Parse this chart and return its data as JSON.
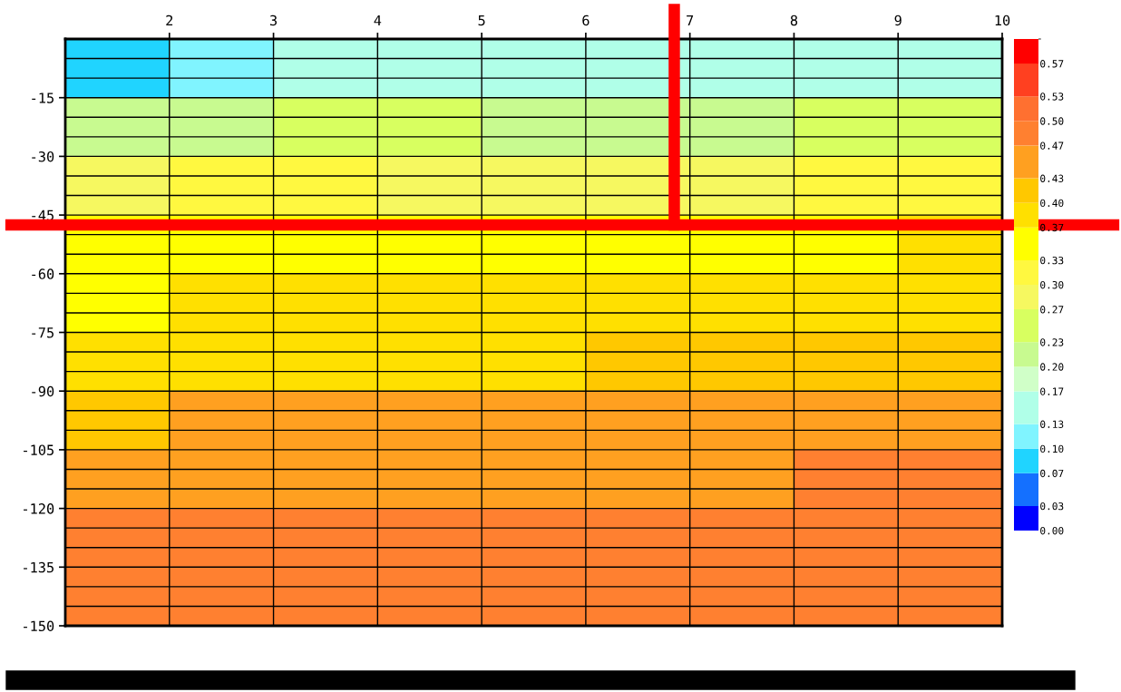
{
  "chart_data": {
    "type": "heatmap",
    "cells": [
      [
        0.08,
        0.12,
        0.13,
        0.13,
        0.13,
        0.13,
        0.13,
        0.14,
        0.13
      ],
      [
        0.2,
        0.22,
        0.23,
        0.23,
        0.22,
        0.22,
        0.22,
        0.23,
        0.23
      ],
      [
        0.28,
        0.3,
        0.3,
        0.29,
        0.29,
        0.29,
        0.29,
        0.31,
        0.31
      ],
      [
        0.33,
        0.34,
        0.34,
        0.34,
        0.34,
        0.35,
        0.35,
        0.36,
        0.37
      ],
      [
        0.35,
        0.37,
        0.37,
        0.37,
        0.37,
        0.37,
        0.38,
        0.38,
        0.39
      ],
      [
        0.39,
        0.39,
        0.39,
        0.39,
        0.39,
        0.4,
        0.4,
        0.41,
        0.41
      ],
      [
        0.42,
        0.43,
        0.43,
        0.43,
        0.43,
        0.43,
        0.43,
        0.44,
        0.44
      ],
      [
        0.46,
        0.46,
        0.46,
        0.46,
        0.46,
        0.46,
        0.46,
        0.47,
        0.47
      ],
      [
        0.48,
        0.48,
        0.48,
        0.48,
        0.48,
        0.48,
        0.48,
        0.48,
        0.48
      ],
      [
        0.49,
        0.49,
        0.49,
        0.49,
        0.49,
        0.49,
        0.49,
        0.49,
        0.49
      ]
    ],
    "colors": [
      "#0000ff",
      "#1470ff",
      "#20d4ff",
      "#80f4ff",
      "#b0ffe8",
      "#d0ffc8",
      "#c8fa90",
      "#d8ff60",
      "#f6f860",
      "#fff840",
      "#ffff00",
      "#ffe000",
      "#ffc800",
      "#ffa020",
      "#ff8030",
      "#ff7030",
      "#ff4020",
      "#ff0000"
    ],
    "clim": [
      0.0,
      0.6
    ],
    "cticks": [
      {
        "value": 0,
        "label": "0.00"
      },
      0.03,
      0.07,
      {
        "value": 0.1,
        "label": "0.10"
      },
      0.13,
      0.17,
      {
        "value": 0.2,
        "label": "0.20"
      },
      0.23,
      0.27,
      {
        "value": 0.3,
        "label": "0.30"
      },
      0.33,
      0.37,
      {
        "value": 0.4,
        "label": "0.40"
      },
      0.43,
      0.47,
      {
        "value": 0.5,
        "label": "0.50"
      },
      0.53,
      0.57
    ],
    "xlim": [
      1,
      10
    ],
    "xticks": [
      2,
      3,
      4,
      5,
      6,
      7,
      8,
      9,
      10
    ],
    "ylim": [
      -150,
      0
    ],
    "yticks": [
      -15,
      -30,
      -45,
      -60,
      -75,
      -90,
      -105,
      -120,
      -135,
      -150
    ],
    "grid": true,
    "ref_lines": [
      {
        "axis": "x",
        "value": 6.85,
        "color": "#ff0000"
      },
      {
        "axis": "y",
        "value": -47.5,
        "color": "#ff0000"
      }
    ]
  }
}
